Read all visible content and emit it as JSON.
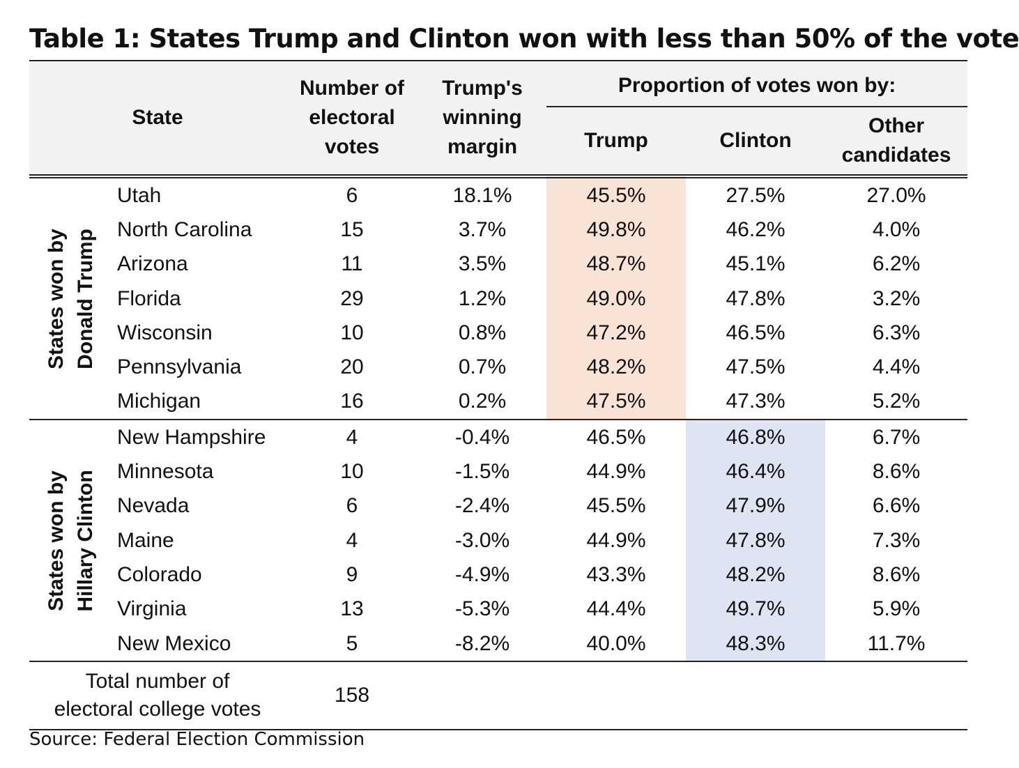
{
  "title": "Table 1: States Trump and Clinton won with less than 50% of the vote",
  "headers": {
    "state": "State",
    "electoral_votes": "Number of electoral votes",
    "margin": "Trump's winning margin",
    "proportion": "Proportion of votes won by:",
    "trump": "Trump",
    "clinton": "Clinton",
    "other": "Other candidates"
  },
  "groups": [
    {
      "label": "States won by Donald Trump",
      "label_lines": [
        "States won by",
        "Donald Trump"
      ],
      "highlight_column": "trump",
      "highlight_color": "#f9e3d6",
      "rows": [
        {
          "state": "Utah",
          "ev": "6",
          "margin": "18.1%",
          "trump": "45.5%",
          "clinton": "27.5%",
          "other": "27.0%"
        },
        {
          "state": "North Carolina",
          "ev": "15",
          "margin": "3.7%",
          "trump": "49.8%",
          "clinton": "46.2%",
          "other": "4.0%"
        },
        {
          "state": "Arizona",
          "ev": "11",
          "margin": "3.5%",
          "trump": "48.7%",
          "clinton": "45.1%",
          "other": "6.2%"
        },
        {
          "state": "Florida",
          "ev": "29",
          "margin": "1.2%",
          "trump": "49.0%",
          "clinton": "47.8%",
          "other": "3.2%"
        },
        {
          "state": "Wisconsin",
          "ev": "10",
          "margin": "0.8%",
          "trump": "47.2%",
          "clinton": "46.5%",
          "other": "6.3%"
        },
        {
          "state": "Pennsylvania",
          "ev": "20",
          "margin": "0.7%",
          "trump": "48.2%",
          "clinton": "47.5%",
          "other": "4.4%"
        },
        {
          "state": "Michigan",
          "ev": "16",
          "margin": "0.2%",
          "trump": "47.5%",
          "clinton": "47.3%",
          "other": "5.2%"
        }
      ]
    },
    {
      "label": "States won by Hillary Clinton",
      "label_lines": [
        "States won by",
        "Hillary Clinton"
      ],
      "highlight_column": "clinton",
      "highlight_color": "#dfe4f2",
      "rows": [
        {
          "state": "New Hampshire",
          "ev": "4",
          "margin": "-0.4%",
          "trump": "46.5%",
          "clinton": "46.8%",
          "other": "6.7%"
        },
        {
          "state": "Minnesota",
          "ev": "10",
          "margin": "-1.5%",
          "trump": "44.9%",
          "clinton": "46.4%",
          "other": "8.6%"
        },
        {
          "state": "Nevada",
          "ev": "6",
          "margin": "-2.4%",
          "trump": "45.5%",
          "clinton": "47.9%",
          "other": "6.6%"
        },
        {
          "state": "Maine",
          "ev": "4",
          "margin": "-3.0%",
          "trump": "44.9%",
          "clinton": "47.8%",
          "other": "7.3%"
        },
        {
          "state": "Colorado",
          "ev": "9",
          "margin": "-4.9%",
          "trump": "43.3%",
          "clinton": "48.2%",
          "other": "8.6%"
        },
        {
          "state": "Virginia",
          "ev": "13",
          "margin": "-5.3%",
          "trump": "44.4%",
          "clinton": "49.7%",
          "other": "5.9%"
        },
        {
          "state": "New Mexico",
          "ev": "5",
          "margin": "-8.2%",
          "trump": "40.0%",
          "clinton": "48.3%",
          "other": "11.7%"
        }
      ]
    }
  ],
  "total": {
    "label_lines": [
      "Total number of",
      "electoral college votes"
    ],
    "value": "158"
  },
  "source": "Source: Federal Election Commission"
}
